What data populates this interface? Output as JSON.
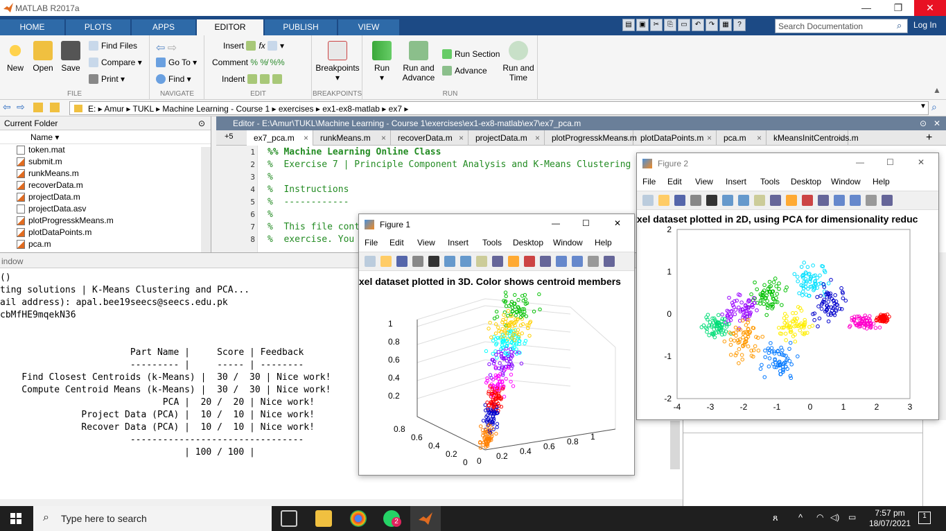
{
  "window": {
    "title": "MATLAB R2017a"
  },
  "tabs": [
    "HOME",
    "PLOTS",
    "APPS",
    "EDITOR",
    "PUBLISH",
    "VIEW"
  ],
  "search": {
    "placeholder": "Search Documentation"
  },
  "login": "Log In",
  "ribbon": {
    "file": {
      "new": "New",
      "open": "Open",
      "save": "Save",
      "find_files": "Find Files",
      "compare": "Compare",
      "print": "Print",
      "label": "FILE"
    },
    "navigate": {
      "go_to": "Go To",
      "find": "Find",
      "label": "NAVIGATE"
    },
    "edit": {
      "insert": "Insert",
      "comment": "Comment",
      "indent": "Indent",
      "fx": "fx",
      "label": "EDIT"
    },
    "breakpoints": {
      "button": "Breakpoints",
      "label": "BREAKPOINTS"
    },
    "run": {
      "run": "Run",
      "run_and_advance": "Run and Advance",
      "run_section": "Run Section",
      "advance": "Advance",
      "run_and_time": "Run and Time",
      "label": "RUN"
    }
  },
  "address": {
    "path": "E: ▸ Amur ▸ TUKL ▸ Machine Learning - Course 1 ▸ exercises ▸ ex1-ex8-matlab ▸ ex7 ▸"
  },
  "current_folder": {
    "title": "Current Folder",
    "col": "Name",
    "files": [
      "token.mat",
      "submit.m",
      "runkMeans.m",
      "recoverData.m",
      "projectData.m",
      "projectData.asv",
      "plotProgresskMeans.m",
      "plotDataPoints.m",
      "pca.m"
    ]
  },
  "editor": {
    "title": "Editor - E:\\Amur\\TUKL\\Machine Learning - Course 1\\exercises\\ex1-ex8-matlab\\ex7\\ex7_pca.m",
    "plus": "+5",
    "tabs": [
      "ex7_pca.m",
      "runkMeans.m",
      "recoverData.m",
      "projectData.m",
      "plotProgresskMeans.m",
      "plotDataPoints.m",
      "pca.m",
      "kMeansInitCentroids.m"
    ],
    "lines": [
      "%% Machine Learning Online Class",
      "%  Exercise 7 | Principle Component Analysis and K-Means Clustering",
      "%",
      "%  Instructions",
      "%  ------------",
      "%",
      "%  This file cont",
      "%  exercise. You"
    ]
  },
  "command": {
    "title": "indow",
    "lines": [
      "()",
      "ting solutions | K-Means Clustering and PCA...",
      "ail address): apal.bee19seecs@seecs.edu.pk",
      "cbMfHE9mqekN36",
      "",
      "",
      "                        Part Name |     Score | Feedback",
      "                        --------- |     ----- | --------",
      "    Find Closest Centroids (k-Means) |  30 /  30 | Nice work!",
      "    Compute Centroid Means (k-Means) |  30 /  30 | Nice work!",
      "                              PCA |  20 /  20 | Nice work!",
      "               Project Data (PCA) |  10 /  10 | Nice work!",
      "               Recover Data (PCA) |  10 /  10 | Nice work!",
      "                        --------------------------------",
      "                                  | 100 / 100 |"
    ]
  },
  "figure_menu": [
    "File",
    "Edit",
    "View",
    "Insert",
    "Tools",
    "Desktop",
    "Window",
    "Help"
  ],
  "figure1": {
    "title": "Figure 1"
  },
  "figure2": {
    "title": "Figure 2"
  },
  "chart_data": [
    {
      "type": "scatter",
      "title": "ixel dataset plotted in 3D. Color shows centroid members",
      "z_ticks": [
        "0.2",
        "0.4",
        "0.6",
        "0.8",
        "1"
      ],
      "x_ticks": [
        "0",
        "0.2",
        "0.4",
        "0.6",
        "0.8",
        "1"
      ],
      "y_ticks": [
        "0.8",
        "0.6",
        "0.4",
        "0.2",
        "0"
      ],
      "x": [
        0.85,
        0.75,
        0.7,
        0.65,
        0.55,
        0.5,
        0.45,
        0.4,
        0.35,
        0.3,
        0.2,
        0.15,
        0.1,
        0.05
      ],
      "y": [
        0.9,
        0.85,
        0.8,
        0.7,
        0.6,
        0.55,
        0.5,
        0.45,
        0.35,
        0.3,
        0.2,
        0.15,
        0.1,
        0.05
      ],
      "z": [
        1.0,
        0.95,
        0.9,
        0.8,
        0.7,
        0.65,
        0.55,
        0.5,
        0.4,
        0.35,
        0.25,
        0.15,
        0.1,
        0.05
      ],
      "series_colors": [
        "#00c000",
        "#ffd000",
        "#00ffff",
        "#8000ff",
        "#ff00ff",
        "#ff0000",
        "#0000cc",
        "#ff8000"
      ]
    },
    {
      "type": "scatter",
      "title": "ixel dataset plotted in 2D, using PCA for dimensionality reduc",
      "xlim": [
        -4,
        3
      ],
      "ylim": [
        -2,
        2
      ],
      "x_ticks": [
        "-4",
        "-3",
        "-2",
        "-1",
        "0",
        "1",
        "2",
        "3"
      ],
      "y_ticks": [
        "2",
        "1",
        "0",
        "-1",
        "-2"
      ],
      "clusters": [
        {
          "color": "#00c000",
          "cx": -1.3,
          "cy": 0.4,
          "sx": 0.4,
          "sy": 0.3
        },
        {
          "color": "#9900ff",
          "cx": -2.1,
          "cy": 0.1,
          "sx": 0.4,
          "sy": 0.3
        },
        {
          "color": "#00dd77",
          "cx": -2.8,
          "cy": -0.3,
          "sx": 0.3,
          "sy": 0.2
        },
        {
          "color": "#ff9900",
          "cx": -2.0,
          "cy": -0.6,
          "sx": 0.4,
          "sy": 0.4
        },
        {
          "color": "#ffee00",
          "cx": -0.5,
          "cy": -0.3,
          "sx": 0.4,
          "sy": 0.3
        },
        {
          "color": "#00e0ff",
          "cx": 0.0,
          "cy": 0.8,
          "sx": 0.4,
          "sy": 0.3
        },
        {
          "color": "#0000cc",
          "cx": 0.6,
          "cy": 0.2,
          "sx": 0.4,
          "sy": 0.4
        },
        {
          "color": "#ff00cc",
          "cx": 1.6,
          "cy": -0.2,
          "sx": 0.3,
          "sy": 0.15
        },
        {
          "color": "#ff0000",
          "cx": 2.2,
          "cy": -0.1,
          "sx": 0.15,
          "sy": 0.07
        },
        {
          "color": "#0077ff",
          "cx": -1.0,
          "cy": -1.1,
          "sx": 0.4,
          "sy": 0.3
        }
      ]
    }
  ],
  "taskbar": {
    "search": "Type here to search",
    "time": "7:57 pm",
    "date": "18/07/2021",
    "badge": "2"
  }
}
